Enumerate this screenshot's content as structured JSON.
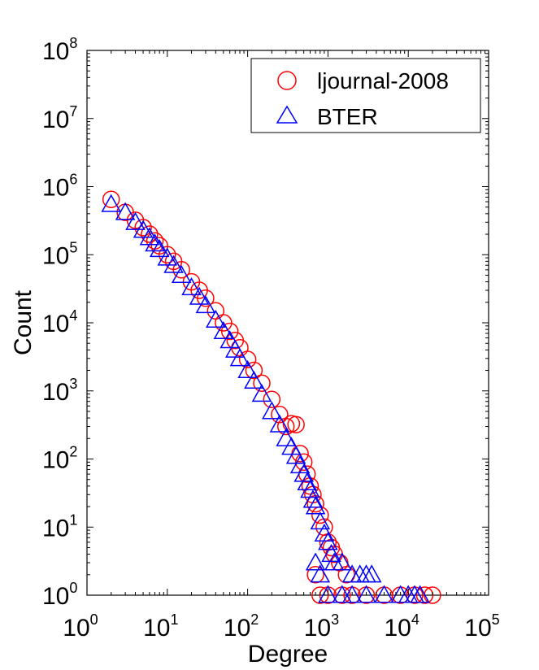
{
  "chart_data": {
    "type": "scatter",
    "xlabel": "Degree",
    "ylabel": "Count",
    "xscale": "log",
    "yscale": "log",
    "xlim": [
      1,
      100000
    ],
    "ylim": [
      1,
      100000000
    ],
    "xticks": [
      {
        "value": 1,
        "base": "10",
        "exp": "0"
      },
      {
        "value": 10,
        "base": "10",
        "exp": "1"
      },
      {
        "value": 100,
        "base": "10",
        "exp": "2"
      },
      {
        "value": 1000,
        "base": "10",
        "exp": "3"
      },
      {
        "value": 10000,
        "base": "10",
        "exp": "4"
      },
      {
        "value": 100000,
        "base": "10",
        "exp": "5"
      }
    ],
    "yticks": [
      {
        "value": 1,
        "base": "10",
        "exp": "0"
      },
      {
        "value": 10,
        "base": "10",
        "exp": "1"
      },
      {
        "value": 100,
        "base": "10",
        "exp": "2"
      },
      {
        "value": 1000,
        "base": "10",
        "exp": "3"
      },
      {
        "value": 10000,
        "base": "10",
        "exp": "4"
      },
      {
        "value": 100000,
        "base": "10",
        "exp": "5"
      },
      {
        "value": 1000000,
        "base": "10",
        "exp": "6"
      },
      {
        "value": 10000000,
        "base": "10",
        "exp": "7"
      },
      {
        "value": 100000000,
        "base": "10",
        "exp": "8"
      }
    ],
    "grid": false,
    "legend_position": "top-right",
    "series": [
      {
        "name": "ljournal-2008",
        "marker": "circle",
        "color": "#ff0000",
        "points": [
          [
            2,
            650000
          ],
          [
            3,
            420000
          ],
          [
            4,
            320000
          ],
          [
            5,
            250000
          ],
          [
            6,
            200000
          ],
          [
            7,
            160000
          ],
          [
            8,
            135000
          ],
          [
            10,
            100000
          ],
          [
            12,
            80000
          ],
          [
            15,
            60000
          ],
          [
            20,
            40000
          ],
          [
            25,
            30000
          ],
          [
            30,
            23000
          ],
          [
            40,
            15000
          ],
          [
            50,
            10000
          ],
          [
            60,
            7500
          ],
          [
            70,
            5500
          ],
          [
            80,
            4300
          ],
          [
            100,
            2900
          ],
          [
            120,
            2000
          ],
          [
            150,
            1300
          ],
          [
            200,
            750
          ],
          [
            250,
            450
          ],
          [
            300,
            300
          ],
          [
            350,
            330
          ],
          [
            400,
            320
          ],
          [
            450,
            120
          ],
          [
            500,
            90
          ],
          [
            550,
            60
          ],
          [
            600,
            40
          ],
          [
            650,
            30
          ],
          [
            700,
            22
          ],
          [
            800,
            15
          ],
          [
            900,
            10
          ],
          [
            1000,
            6
          ],
          [
            1100,
            5
          ],
          [
            1200,
            4
          ],
          [
            1400,
            3
          ],
          [
            1700,
            2
          ],
          [
            700,
            2
          ],
          [
            800,
            1
          ],
          [
            1000,
            1
          ],
          [
            1500,
            1
          ],
          [
            2000,
            1
          ],
          [
            3000,
            1
          ],
          [
            5000,
            1
          ],
          [
            8000,
            1
          ],
          [
            12000,
            1
          ],
          [
            16000,
            1
          ],
          [
            20000,
            1
          ]
        ]
      },
      {
        "name": "BTER",
        "marker": "triangle",
        "color": "#0000ff",
        "points": [
          [
            2,
            550000
          ],
          [
            3,
            420000
          ],
          [
            4,
            300000
          ],
          [
            5,
            230000
          ],
          [
            6,
            180000
          ],
          [
            7,
            145000
          ],
          [
            8,
            120000
          ],
          [
            10,
            90000
          ],
          [
            12,
            70000
          ],
          [
            15,
            50000
          ],
          [
            20,
            33000
          ],
          [
            25,
            24000
          ],
          [
            30,
            18000
          ],
          [
            40,
            11000
          ],
          [
            50,
            7500
          ],
          [
            60,
            5500
          ],
          [
            70,
            4000
          ],
          [
            80,
            3000
          ],
          [
            100,
            2000
          ],
          [
            120,
            1400
          ],
          [
            150,
            900
          ],
          [
            200,
            500
          ],
          [
            250,
            320
          ],
          [
            300,
            200
          ],
          [
            350,
            150
          ],
          [
            400,
            110
          ],
          [
            450,
            80
          ],
          [
            500,
            60
          ],
          [
            550,
            45
          ],
          [
            600,
            35
          ],
          [
            650,
            25
          ],
          [
            700,
            20
          ],
          [
            800,
            12
          ],
          [
            900,
            8
          ],
          [
            1000,
            6
          ],
          [
            1100,
            4
          ],
          [
            1200,
            3
          ],
          [
            1500,
            3
          ],
          [
            2000,
            2
          ],
          [
            2500,
            2
          ],
          [
            3000,
            2
          ],
          [
            3500,
            2
          ],
          [
            700,
            3
          ],
          [
            800,
            2
          ],
          [
            1000,
            1
          ],
          [
            1500,
            1
          ],
          [
            2000,
            1
          ],
          [
            3000,
            1
          ],
          [
            5000,
            1
          ],
          [
            8000,
            1
          ],
          [
            10000,
            1
          ],
          [
            12000,
            1
          ],
          [
            14000,
            1
          ]
        ]
      }
    ]
  }
}
